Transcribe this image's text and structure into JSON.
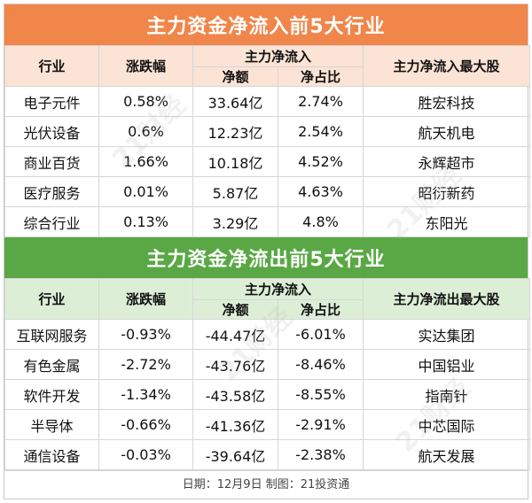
{
  "inflow": {
    "title": "主力资金净流入前5大行业",
    "headers": {
      "industry": "行业",
      "change": "涨跌幅",
      "main_flow": "主力净流入",
      "net_amount": "净额",
      "net_ratio": "净占比",
      "top_stock": "主力净流入最大股"
    },
    "rows": [
      {
        "industry": "电子元件",
        "change": "0.58%",
        "amount": "33.64亿",
        "ratio": "2.74%",
        "stock": "胜宏科技"
      },
      {
        "industry": "光伏设备",
        "change": "0.6%",
        "amount": "12.23亿",
        "ratio": "2.54%",
        "stock": "航天机电"
      },
      {
        "industry": "商业百货",
        "change": "1.66%",
        "amount": "10.18亿",
        "ratio": "4.52%",
        "stock": "永辉超市"
      },
      {
        "industry": "医疗服务",
        "change": "0.01%",
        "amount": "5.87亿",
        "ratio": "4.63%",
        "stock": "昭衍新药"
      },
      {
        "industry": "综合行业",
        "change": "0.13%",
        "amount": "3.29亿",
        "ratio": "4.8%",
        "stock": "东阳光"
      }
    ]
  },
  "outflow": {
    "title": "主力资金净流出前5大行业",
    "headers": {
      "industry": "行业",
      "change": "涨跌幅",
      "main_flow": "主力净流入",
      "net_amount": "净额",
      "net_ratio": "净占比",
      "top_stock": "主力净流出最大股"
    },
    "rows": [
      {
        "industry": "互联网服务",
        "change": "-0.93%",
        "amount": "-44.47亿",
        "ratio": "-6.01%",
        "stock": "实达集团"
      },
      {
        "industry": "有色金属",
        "change": "-2.72%",
        "amount": "-43.76亿",
        "ratio": "-8.46%",
        "stock": "中国铝业"
      },
      {
        "industry": "软件开发",
        "change": "-1.34%",
        "amount": "-43.58亿",
        "ratio": "-8.55%",
        "stock": "指南针"
      },
      {
        "industry": "半导体",
        "change": "-0.66%",
        "amount": "-41.36亿",
        "ratio": "-2.91%",
        "stock": "中芯国际"
      },
      {
        "industry": "通信设备",
        "change": "-0.03%",
        "amount": "-39.64亿",
        "ratio": "-2.38%",
        "stock": "航天发展"
      }
    ]
  },
  "footer": "日期：12月9日 制图：21投资通",
  "watermark": "21财经",
  "colors": {
    "inflow_header": "#f0864a",
    "outflow_header": "#5aa845",
    "inflow_subheader": "#fbe3d5",
    "outflow_subheader": "#dcefd6"
  }
}
